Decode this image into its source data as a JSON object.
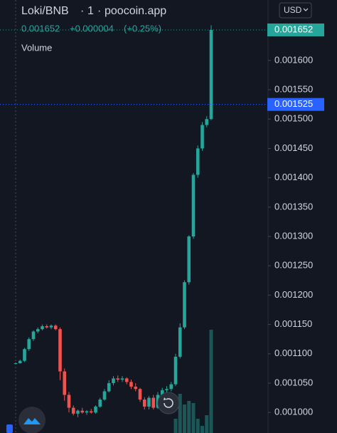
{
  "chart_data": {
    "type": "candlestick",
    "symbol": "Loki/BNB",
    "interval": "1",
    "source": "poocoin.app",
    "change": "+0.000004",
    "change_pct": "(+0.25%)",
    "volume_title": "Volume",
    "currency": "USD",
    "last_price": 0.001652,
    "crosshair_price": 0.001525,
    "up_color": "#26a69a",
    "down_color": "#ef5350",
    "open": [
      0.001083,
      0.001084,
      0.001088,
      0.001108,
      0.001125,
      0.001138,
      0.001142,
      0.001147,
      0.001145,
      0.001148,
      0.001142,
      0.00107,
      0.00103,
      0.001008,
      0.000998,
      0.001003,
      0.001,
      0.001002,
      0.001,
      0.00101,
      0.001022,
      0.001036,
      0.00105,
      0.001058,
      0.001056,
      0.001058,
      0.001052,
      0.001044,
      0.00104,
      0.001022,
      0.00101,
      0.001025,
      0.001008,
      0.00103,
      0.001038,
      0.00104,
      0.001048,
      0.001095,
      0.001145,
      0.001222,
      0.0013,
      0.001405,
      0.00145,
      0.00149,
      0.0015
    ],
    "high": [
      0.001085,
      0.00109,
      0.00111,
      0.001128,
      0.00114,
      0.001145,
      0.00115,
      0.00115,
      0.00115,
      0.00115,
      0.001145,
      0.001075,
      0.001035,
      0.001012,
      0.001005,
      0.001008,
      0.001004,
      0.001006,
      0.001012,
      0.001025,
      0.00104,
      0.001055,
      0.001062,
      0.001063,
      0.001062,
      0.00106,
      0.001056,
      0.00105,
      0.001042,
      0.001026,
      0.001028,
      0.00103,
      0.001035,
      0.001042,
      0.001045,
      0.001052,
      0.0011,
      0.001152,
      0.001225,
      0.001302,
      0.001408,
      0.001455,
      0.001495,
      0.001505,
      0.00166
    ],
    "low": [
      0.001082,
      0.001083,
      0.001086,
      0.001105,
      0.001122,
      0.001135,
      0.00114,
      0.001143,
      0.001142,
      0.00114,
      0.001055,
      0.00102,
      0.001,
      0.000995,
      0.000992,
      0.000998,
      0.000996,
      0.000998,
      0.000998,
      0.001008,
      0.00102,
      0.001034,
      0.001046,
      0.001052,
      0.001052,
      0.001048,
      0.00104,
      0.001036,
      0.001018,
      0.001005,
      0.001005,
      0.001005,
      0.001006,
      0.001026,
      0.001032,
      0.001036,
      0.001045,
      0.001092,
      0.001142,
      0.001218,
      0.001296,
      0.0014,
      0.001446,
      0.001486,
      0.001498
    ],
    "close": [
      0.001084,
      0.001088,
      0.001108,
      0.001125,
      0.001138,
      0.001142,
      0.001147,
      0.001145,
      0.001148,
      0.001142,
      0.00107,
      0.00103,
      0.001008,
      0.000998,
      0.001003,
      0.001,
      0.001002,
      0.001,
      0.00101,
      0.001022,
      0.001036,
      0.00105,
      0.001058,
      0.001056,
      0.001058,
      0.001052,
      0.001044,
      0.00104,
      0.001022,
      0.00101,
      0.001025,
      0.001008,
      0.00103,
      0.001038,
      0.00104,
      0.001048,
      0.001095,
      0.001145,
      0.001222,
      0.0013,
      0.001405,
      0.00145,
      0.00149,
      0.0015,
      0.001652
    ],
    "volume": [
      null,
      null,
      null,
      null,
      null,
      null,
      null,
      null,
      null,
      null,
      null,
      null,
      null,
      null,
      null,
      null,
      null,
      null,
      null,
      null,
      null,
      null,
      null,
      null,
      null,
      null,
      null,
      null,
      null,
      null,
      null,
      null,
      null,
      null,
      null,
      null,
      20,
      55,
      40,
      45,
      42,
      20,
      10,
      25,
      145
    ],
    "ylim": [
      0.000965,
      0.001703
    ],
    "yticks": [
      {
        "value": 0.001,
        "label": "0.001000"
      },
      {
        "value": 0.00105,
        "label": "0.001050"
      },
      {
        "value": 0.0011,
        "label": "0.001100"
      },
      {
        "value": 0.00115,
        "label": "0.001150"
      },
      {
        "value": 0.0012,
        "label": "0.001200"
      },
      {
        "value": 0.00125,
        "label": "0.001250"
      },
      {
        "value": 0.0013,
        "label": "0.001300"
      },
      {
        "value": 0.00135,
        "label": "0.001350"
      },
      {
        "value": 0.0014,
        "label": "0.001400"
      },
      {
        "value": 0.00145,
        "label": "0.001450"
      },
      {
        "value": 0.0015,
        "label": "0.001500"
      },
      {
        "value": 0.00155,
        "label": "0.001550"
      },
      {
        "value": 0.0016,
        "label": "0.001600"
      }
    ]
  }
}
